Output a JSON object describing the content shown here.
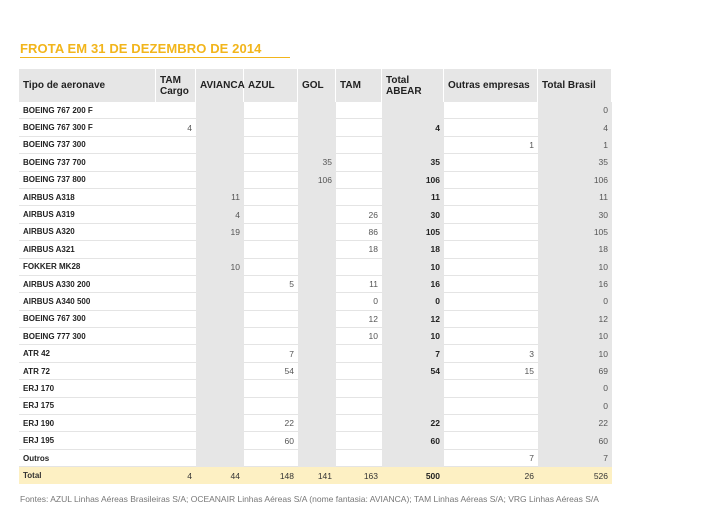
{
  "title": "FROTA EM 31 DE DEZEMBRO DE 2014",
  "columns": [
    "Tipo de aeronave",
    "TAM Cargo",
    "AVIANCA",
    "AZUL",
    "GOL",
    "TAM",
    "Total ABEAR",
    "Outras empresas",
    "Total Brasil"
  ],
  "rows": [
    {
      "type": "BOEING 767 200 F",
      "values": [
        "",
        "",
        "",
        "",
        "",
        "",
        "",
        "0"
      ]
    },
    {
      "type": "BOEING 767 300 F",
      "values": [
        "4",
        "",
        "",
        "",
        "",
        "4",
        "",
        "4"
      ]
    },
    {
      "type": "BOEING 737 300",
      "values": [
        "",
        "",
        "",
        "",
        "",
        "",
        "1",
        "1"
      ]
    },
    {
      "type": "BOEING 737 700",
      "values": [
        "",
        "",
        "",
        "35",
        "",
        "35",
        "",
        "35"
      ]
    },
    {
      "type": "BOEING 737 800",
      "values": [
        "",
        "",
        "",
        "106",
        "",
        "106",
        "",
        "106"
      ]
    },
    {
      "type": "AIRBUS A318",
      "values": [
        "",
        "11",
        "",
        "",
        "",
        "11",
        "",
        "11"
      ]
    },
    {
      "type": "AIRBUS A319",
      "values": [
        "",
        "4",
        "",
        "",
        "26",
        "30",
        "",
        "30"
      ]
    },
    {
      "type": "AIRBUS A320",
      "values": [
        "",
        "19",
        "",
        "",
        "86",
        "105",
        "",
        "105"
      ]
    },
    {
      "type": "AIRBUS A321",
      "values": [
        "",
        "",
        "",
        "",
        "18",
        "18",
        "",
        "18"
      ]
    },
    {
      "type": "FOKKER MK28",
      "values": [
        "",
        "10",
        "",
        "",
        "",
        "10",
        "",
        "10"
      ]
    },
    {
      "type": "AIRBUS A330 200",
      "values": [
        "",
        "",
        "5",
        "",
        "11",
        "16",
        "",
        "16"
      ]
    },
    {
      "type": "AIRBUS A340 500",
      "values": [
        "",
        "",
        "",
        "",
        "0",
        "0",
        "",
        "0"
      ]
    },
    {
      "type": "BOEING 767 300",
      "values": [
        "",
        "",
        "",
        "",
        "12",
        "12",
        "",
        "12"
      ]
    },
    {
      "type": "BOEING 777 300",
      "values": [
        "",
        "",
        "",
        "",
        "10",
        "10",
        "",
        "10"
      ]
    },
    {
      "type": "ATR 42",
      "values": [
        "",
        "",
        "7",
        "",
        "",
        "7",
        "3",
        "10"
      ]
    },
    {
      "type": "ATR 72",
      "values": [
        "",
        "",
        "54",
        "",
        "",
        "54",
        "15",
        "69"
      ]
    },
    {
      "type": "ERJ 170",
      "values": [
        "",
        "",
        "",
        "",
        "",
        "",
        "",
        "0"
      ]
    },
    {
      "type": "ERJ 175",
      "values": [
        "",
        "",
        "",
        "",
        "",
        "",
        "",
        "0"
      ]
    },
    {
      "type": "ERJ 190",
      "values": [
        "",
        "",
        "22",
        "",
        "",
        "22",
        "",
        "22"
      ]
    },
    {
      "type": "ERJ 195",
      "values": [
        "",
        "",
        "60",
        "",
        "",
        "60",
        "",
        "60"
      ]
    },
    {
      "type": "Outros",
      "values": [
        "",
        "",
        "",
        "",
        "",
        "",
        "7",
        "7"
      ]
    }
  ],
  "total": {
    "type": "Total",
    "values": [
      "4",
      "44",
      "148",
      "141",
      "163",
      "500",
      "26",
      "526"
    ]
  },
  "footer": "Fontes: AZUL Linhas Aéreas Brasileiras S/A; OCEANAIR Linhas Aéreas S/A (nome fantasia: AVIANCA); TAM Linhas Aéreas S/A; VRG Linhas Aéreas S/A",
  "colors": {
    "accent": "#f2b51b",
    "shade": "#e6e6e6",
    "total_row": "#fdf0c3"
  }
}
